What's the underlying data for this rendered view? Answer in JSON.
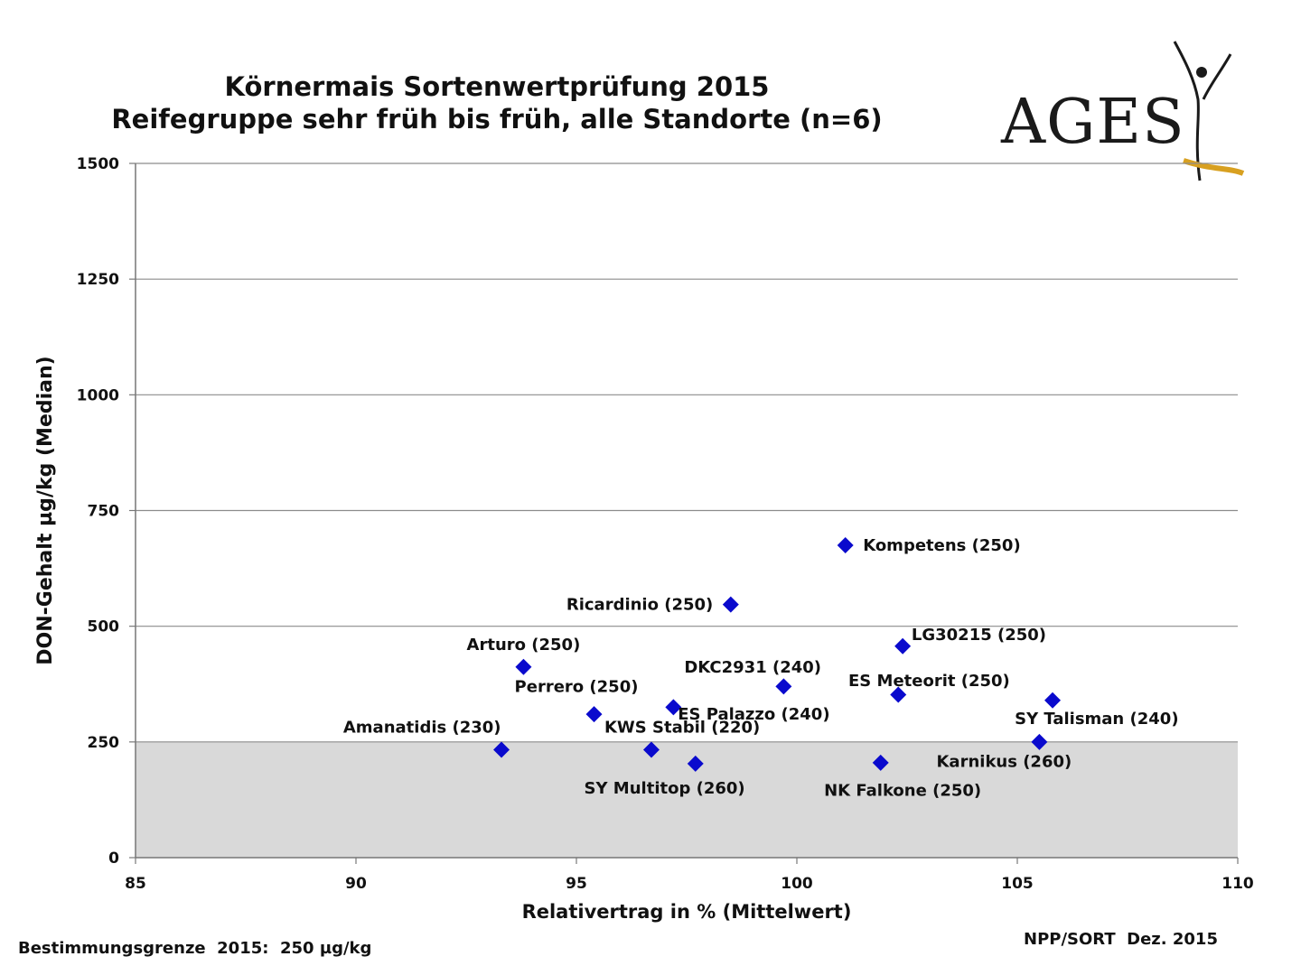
{
  "title_lines": [
    "Körnermais Sortenwertprüfung 2015",
    "Reifegruppe sehr früh bis früh, alle Standorte (n=6)"
  ],
  "logo": {
    "text": "AGES",
    "accent_color": "#d8a020"
  },
  "footer": {
    "left": "Bestimmungsgrenze  2015:  250 µg/kg",
    "right": "NPP/SORT  Dez. 2015"
  },
  "chart_data": {
    "type": "scatter",
    "title": "Körnermais Sortenwertprüfung 2015 / Reifegruppe sehr früh bis früh, alle Standorte (n=6)",
    "xlabel": "Relativertrag in % (Mittelwert)",
    "ylabel": "DON-Gehalt µg/kg (Median)",
    "xlim": [
      85,
      110
    ],
    "ylim": [
      0,
      1500
    ],
    "xticks": [
      85,
      90,
      95,
      100,
      105,
      110
    ],
    "yticks": [
      0,
      250,
      500,
      750,
      1000,
      1250,
      1500
    ],
    "grid": "horizontal",
    "threshold": {
      "y": 250,
      "shaded_below": true,
      "shade_color": "#d9d9d9"
    },
    "marker": {
      "shape": "diamond",
      "color": "#0a0acd"
    },
    "points": [
      {
        "label": "Kompetens  (250)",
        "x": 101.1,
        "y": 675,
        "lx": 101.5,
        "ly": 675,
        "anchor": "start"
      },
      {
        "label": "Ricardinio  (250)",
        "x": 98.5,
        "y": 547,
        "lx": 98.1,
        "ly": 547,
        "anchor": "end"
      },
      {
        "label": "LG30215  (250)",
        "x": 102.4,
        "y": 457,
        "lx": 102.6,
        "ly": 482,
        "anchor": "start"
      },
      {
        "label": "Arturo (250)",
        "x": 93.8,
        "y": 412,
        "lx": 93.8,
        "ly": 460,
        "anchor": "middle"
      },
      {
        "label": "DKC2931  (240)",
        "x": 99.7,
        "y": 370,
        "lx": 99.0,
        "ly": 412,
        "anchor": "middle"
      },
      {
        "label": "ES  Meteorit (250)",
        "x": 102.3,
        "y": 352,
        "lx": 103.0,
        "ly": 382,
        "anchor": "middle"
      },
      {
        "label": "SY Talisman  (240)",
        "x": 105.8,
        "y": 340,
        "lx": 106.8,
        "ly": 300,
        "anchor": "middle"
      },
      {
        "label": "ES  Palazzo (240)",
        "x": 97.2,
        "y": 325,
        "lx": 97.3,
        "ly": 310,
        "anchor": "start"
      },
      {
        "label": "Perrero (250)",
        "x": 95.4,
        "y": 310,
        "lx": 95.0,
        "ly": 370,
        "anchor": "middle"
      },
      {
        "label": "Karnikus  (260)",
        "x": 105.5,
        "y": 250,
        "lx": 104.7,
        "ly": 208,
        "anchor": "middle"
      },
      {
        "label": "Amanatidis  (230)",
        "x": 93.3,
        "y": 233,
        "lx": 91.5,
        "ly": 282,
        "anchor": "middle"
      },
      {
        "label": "KWS  Stabil  (220)",
        "x": 96.7,
        "y": 233,
        "lx": 97.4,
        "ly": 282,
        "anchor": "middle"
      },
      {
        "label": "NK  Falkone  (250)",
        "x": 101.9,
        "y": 205,
        "lx": 102.4,
        "ly": 145,
        "anchor": "middle"
      },
      {
        "label": "SY Multitop  (260)",
        "x": 97.7,
        "y": 203,
        "lx": 97.0,
        "ly": 150,
        "anchor": "middle"
      }
    ]
  }
}
